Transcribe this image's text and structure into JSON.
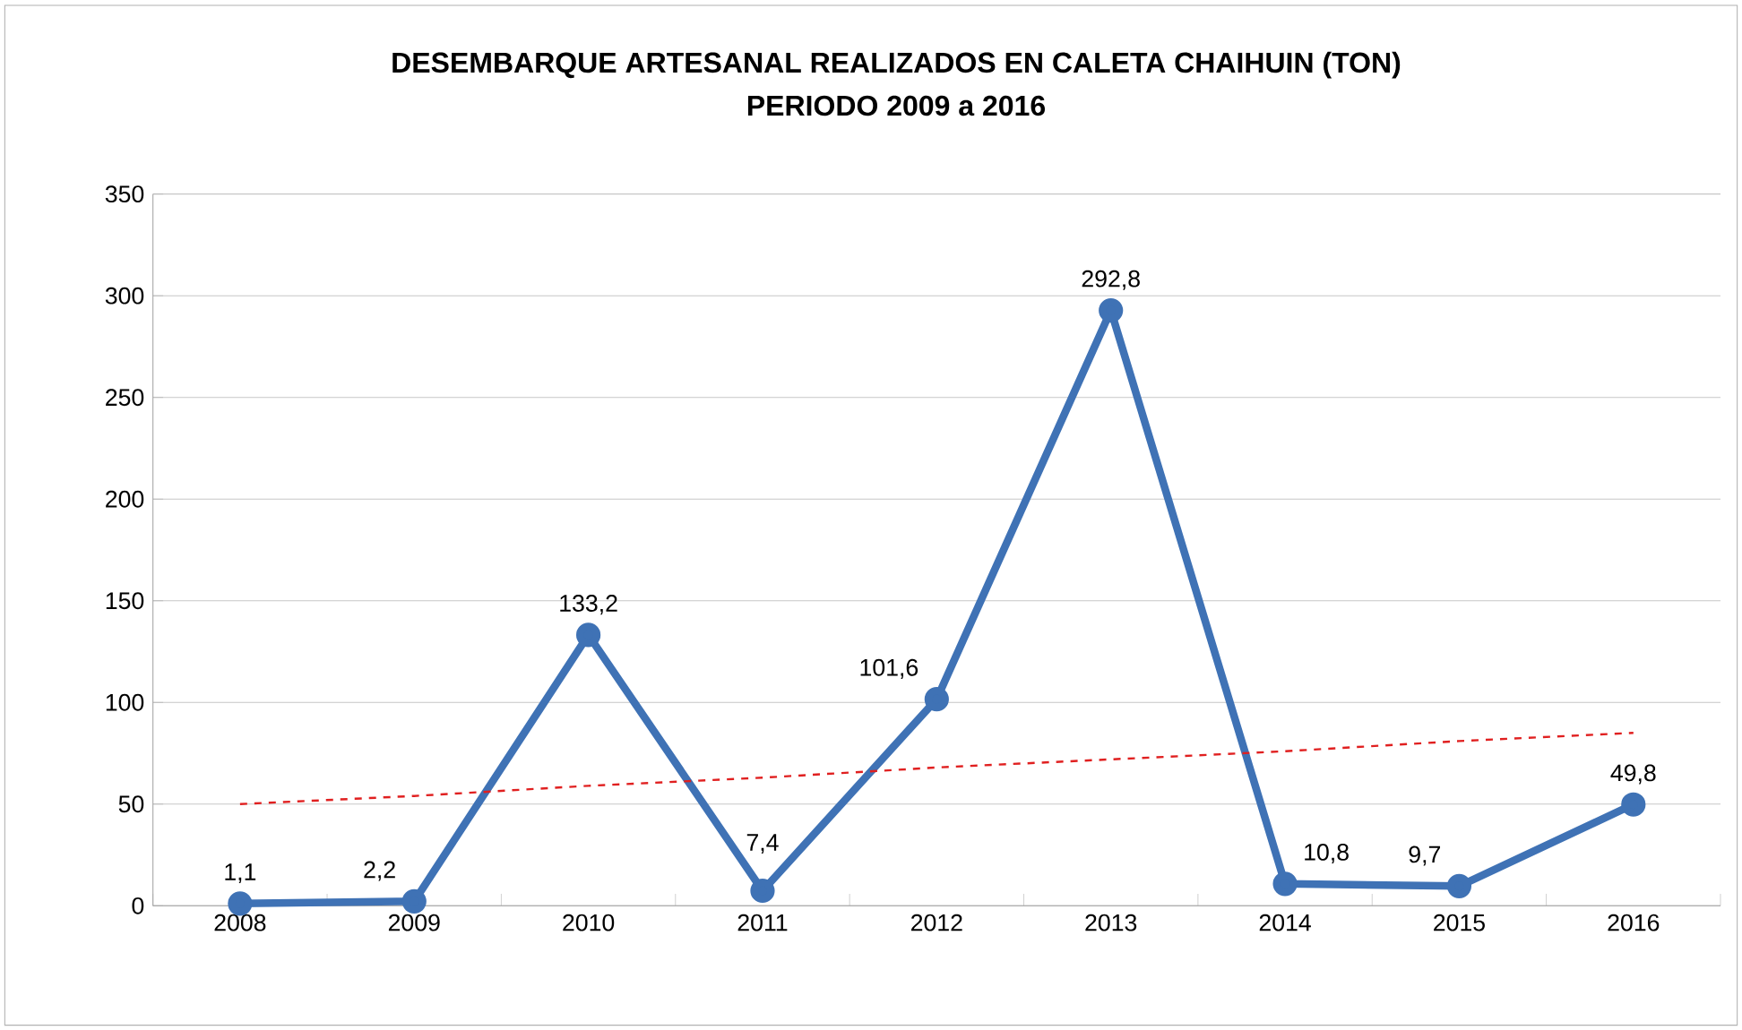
{
  "chart_data": {
    "type": "line",
    "title": "DESEMBARQUE ARTESANAL REALIZADOS EN CALETA CHAIHUIN (TON)",
    "subtitle": "PERIODO 2009 a 2016",
    "categories": [
      "2008",
      "2009",
      "2010",
      "2011",
      "2012",
      "2013",
      "2014",
      "2015",
      "2016"
    ],
    "series": [
      {
        "color": "#3f72b5",
        "values": [
          1.1,
          2.2,
          133.2,
          7.4,
          101.6,
          292.8,
          10.8,
          9.7,
          49.8
        ],
        "value_labels": [
          "1,1",
          "2,2",
          "133,2",
          "7,4",
          "101,6",
          "292,8",
          "10,8",
          "9,7",
          "49,8"
        ],
        "marker": "circle",
        "line_style": "solid"
      },
      {
        "type": "line",
        "values": [
          50,
          54,
          59,
          63,
          68,
          72,
          76,
          81,
          85
        ],
        "color": "#e02020",
        "line_style": "dashed",
        "marker": "none"
      }
    ],
    "ylim": [
      0,
      350
    ],
    "yticks": [
      0,
      50,
      100,
      150,
      200,
      250,
      300,
      350
    ],
    "grid": "y"
  }
}
